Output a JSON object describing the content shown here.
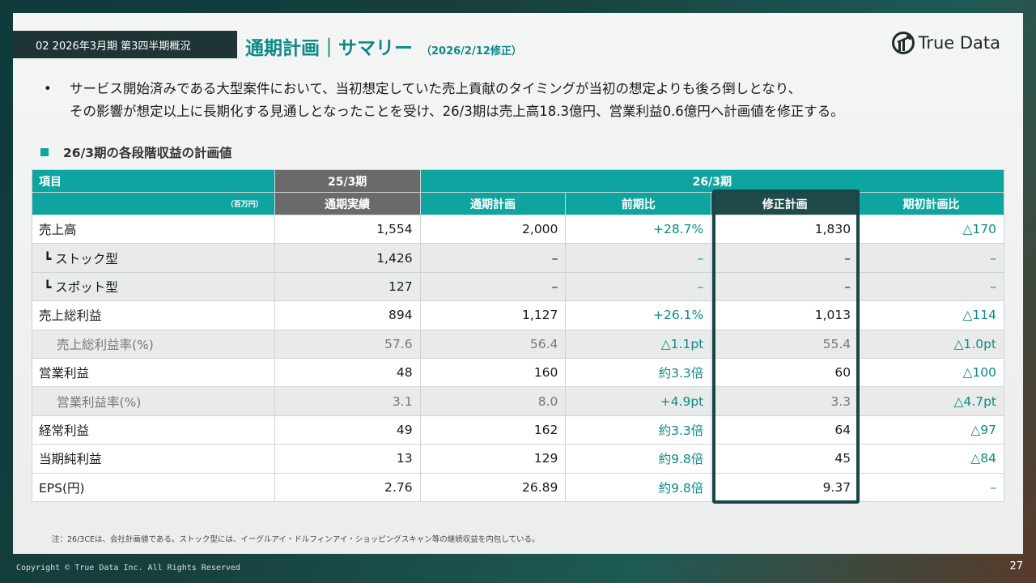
{
  "header": {
    "section_tag": "02 2026年3月期 第3四半期概況",
    "title": "通期計画｜サマリー",
    "subtitle": "（2026/2/12修正）",
    "logo_text": "True Data"
  },
  "bullet": {
    "line1": "サービス開始済みである大型案件において、当初想定していた売上貢献のタイミングが当初の想定よりも後ろ倒しとなり、",
    "line2": "その影響が想定以上に長期化する見通しとなったことを受け、26/3期は売上高18.3億円、営業利益0.6億円へ計画値を修正する。"
  },
  "subheading": "26/3期の各段階収益の計画値",
  "table": {
    "header_item": "項目",
    "header_prev_period": "25/3期",
    "header_curr_period": "26/3期",
    "unit": "（百万円）",
    "columns": [
      "通期実績",
      "通期計画",
      "前期比",
      "修正計画",
      "期初計画比"
    ],
    "rows": [
      {
        "label": "売上高",
        "values": [
          "1,554",
          "2,000",
          "+28.7%",
          "1,830",
          "△170"
        ]
      },
      {
        "label": "┗ ストック型",
        "values": [
          "1,426",
          "–",
          "–",
          "–",
          "–"
        ]
      },
      {
        "label": "┗ スポット型",
        "values": [
          "127",
          "–",
          "–",
          "–",
          "–"
        ]
      },
      {
        "label": "売上総利益",
        "values": [
          "894",
          "1,127",
          "+26.1%",
          "1,013",
          "△114"
        ]
      },
      {
        "label": "売上総利益率(%)",
        "values": [
          "57.6",
          "56.4",
          "△1.1pt",
          "55.4",
          "△1.0pt"
        ]
      },
      {
        "label": "営業利益",
        "values": [
          "48",
          "160",
          "約3.3倍",
          "60",
          "△100"
        ]
      },
      {
        "label": "営業利益率(%)",
        "values": [
          "3.1",
          "8.0",
          "+4.9pt",
          "3.3",
          "△4.7pt"
        ]
      },
      {
        "label": "経常利益",
        "values": [
          "49",
          "162",
          "約3.3倍",
          "64",
          "△97"
        ]
      },
      {
        "label": "当期純利益",
        "values": [
          "13",
          "129",
          "約9.8倍",
          "45",
          "△84"
        ]
      },
      {
        "label": "EPS(円)",
        "values": [
          "2.76",
          "26.89",
          "約9.8倍",
          "9.37",
          "–"
        ]
      }
    ]
  },
  "note": "注：26/3CEは、会社計画値である。ストック型には、イーグルアイ・ドルフィンアイ・ショッピングスキャン等の継続収益を内包している。",
  "footer": {
    "copyright": "Copyright © True Data Inc. All Rights Reserved",
    "page": "27"
  },
  "colors": {
    "accent": "#0ea5a0",
    "dark": "#1e4a4a",
    "gray_header": "#6a6a6a"
  }
}
